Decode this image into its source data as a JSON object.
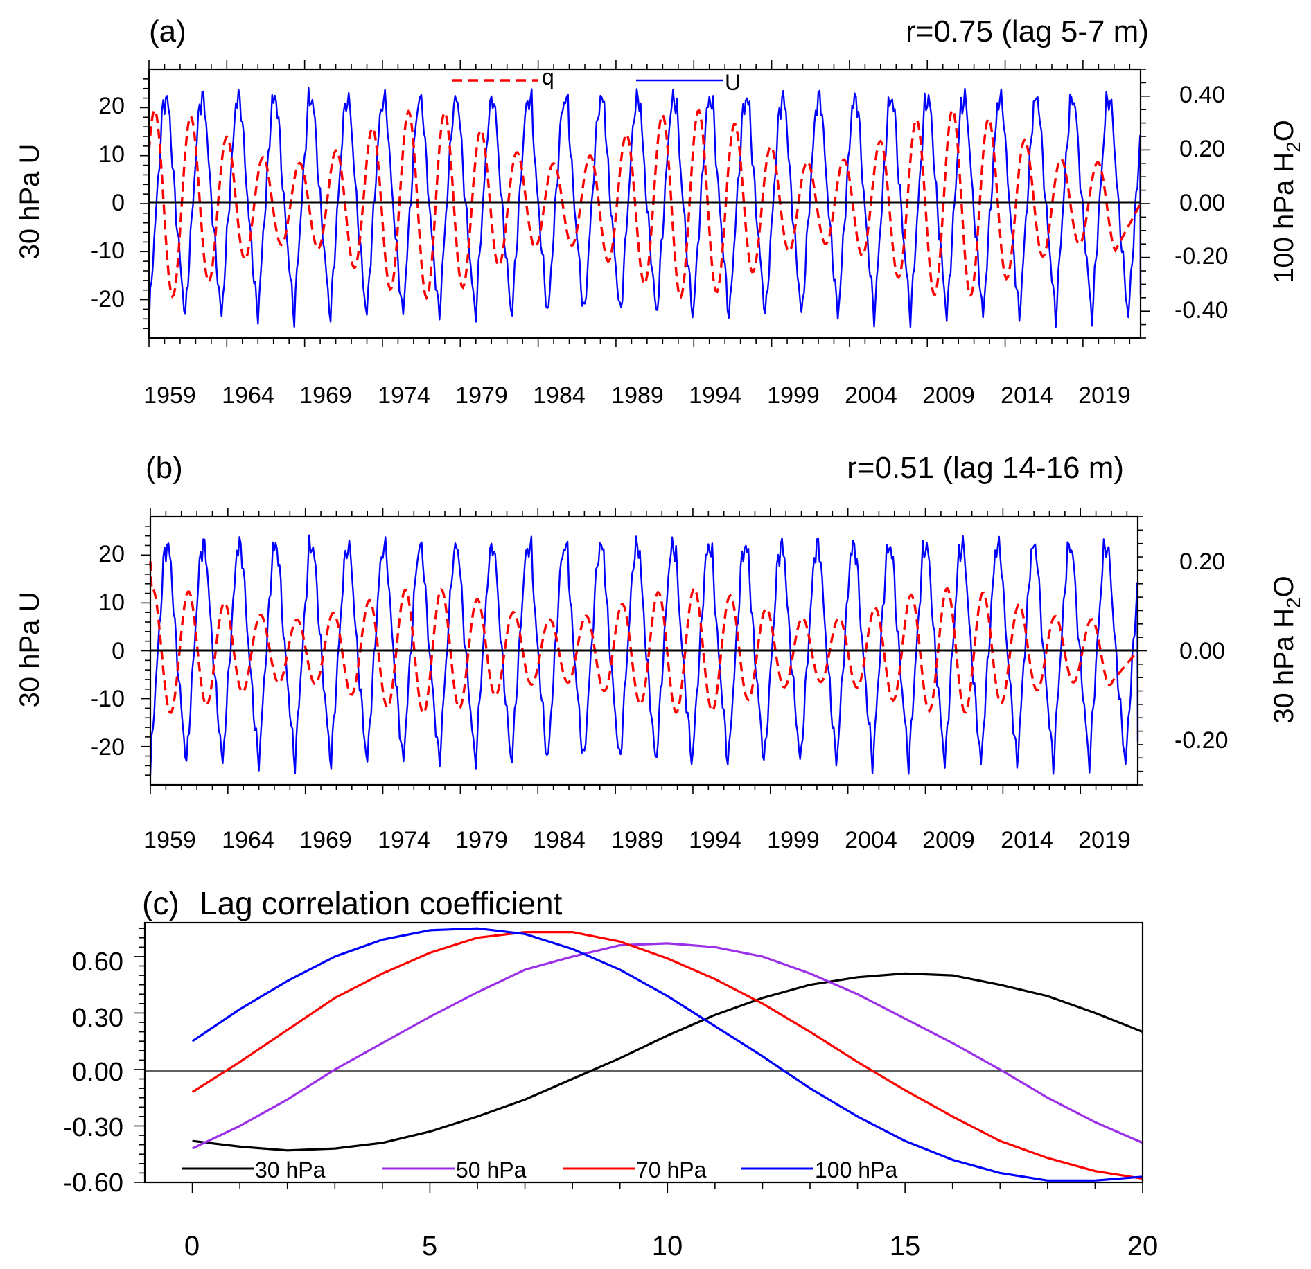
{
  "colors": {
    "q": "#ff0000",
    "U": "#0000ff",
    "zero": "#000000",
    "p30": "#000000",
    "p50": "#9b30e8",
    "p70": "#ff0000",
    "p100": "#0000ff"
  },
  "chart_data": [
    {
      "type": "line",
      "panel_label": "(a)",
      "annotation": "r=0.75 (lag 5-7 m)",
      "ylabel_left": "30 hPa U",
      "ylabel_right_main": "100 hPa H",
      "ylabel_right_sub": "2",
      "ylabel_right_tail": "O",
      "xlim": [
        1959,
        2022.7
      ],
      "ylim_left": [
        -28,
        28
      ],
      "ylim_right": [
        -0.5,
        0.5
      ],
      "x_ticks": [
        "1959",
        "1964",
        "1969",
        "1974",
        "1979",
        "1984",
        "1989",
        "1994",
        "1999",
        "2004",
        "2009",
        "2014",
        "2019"
      ],
      "y_ticks_left": [
        "20",
        "10",
        "0",
        "-10",
        "-20"
      ],
      "y_ticks_right": [
        "0.40",
        "0.20",
        "0.00",
        "-0.20",
        "-0.40"
      ],
      "legend": "top-center",
      "series": [
        {
          "name": "q",
          "axis": "right",
          "style": "dashed",
          "period_years": 2.33,
          "amp_min": 0.15,
          "amp_max": 0.35,
          "phase": 0.6,
          "end_value": 0.0
        },
        {
          "name": "U",
          "axis": "left",
          "style": "solid",
          "period_years": 2.33,
          "max": 22,
          "min": -24,
          "phase": 0.0,
          "start_value": -26,
          "end_value": -19
        }
      ]
    },
    {
      "type": "line",
      "panel_label": "(b)",
      "annotation": "r=0.51 (lag 14-16 m)",
      "ylabel_left": "30 hPa U",
      "ylabel_right_main": "30 hPa H",
      "ylabel_right_sub": "2",
      "ylabel_right_tail": "O",
      "xlim": [
        1959,
        2022.7
      ],
      "ylim_left": [
        -28,
        28
      ],
      "ylim_right": [
        -0.3,
        0.3
      ],
      "x_ticks": [
        "1959",
        "1964",
        "1969",
        "1974",
        "1979",
        "1984",
        "1989",
        "1994",
        "1999",
        "2004",
        "2009",
        "2014",
        "2019"
      ],
      "y_ticks_left": [
        "20",
        "10",
        "0",
        "-10",
        "-20"
      ],
      "y_ticks_right": [
        "0.20",
        "0.00",
        "-0.20"
      ],
      "series": [
        {
          "name": "q",
          "axis": "right",
          "style": "dashed",
          "period_years": 2.33,
          "amp_min": 0.07,
          "amp_max": 0.14,
          "phase": 1.2,
          "start_value": 0.2,
          "end_value": 0.0
        },
        {
          "name": "U",
          "axis": "left",
          "style": "solid",
          "period_years": 2.33,
          "max": 22,
          "min": -24,
          "phase": 0.0,
          "start_value": -26,
          "end_value": -19
        }
      ]
    },
    {
      "type": "line",
      "panel_label": "(c)",
      "title": "Lag correlation coefficient",
      "xlim": [
        -1,
        20
      ],
      "ylim": [
        -0.6,
        0.78
      ],
      "x_ticks": [
        "0",
        "5",
        "10",
        "15",
        "20"
      ],
      "y_ticks": [
        "0.60",
        "0.30",
        "0.00",
        "-0.30",
        "-0.60"
      ],
      "legend": "bottom",
      "x": [
        0,
        1,
        2,
        3,
        4,
        5,
        6,
        7,
        8,
        9,
        10,
        11,
        12,
        13,
        14,
        15,
        16,
        17,
        18,
        19,
        20
      ],
      "series": [
        {
          "name": "30 hPa",
          "key": "p30",
          "values": [
            -0.38,
            -0.41,
            -0.43,
            -0.42,
            -0.39,
            -0.33,
            -0.25,
            -0.16,
            -0.05,
            0.06,
            0.18,
            0.29,
            0.38,
            0.45,
            0.49,
            0.51,
            0.5,
            0.45,
            0.39,
            0.3,
            0.2
          ]
        },
        {
          "name": "50 hPa",
          "key": "p50",
          "values": [
            -0.42,
            -0.3,
            -0.16,
            0.0,
            0.14,
            0.28,
            0.41,
            0.53,
            0.6,
            0.66,
            0.67,
            0.65,
            0.6,
            0.51,
            0.4,
            0.27,
            0.14,
            0.0,
            -0.15,
            -0.28,
            -0.39
          ]
        },
        {
          "name": "70 hPa",
          "key": "p70",
          "values": [
            -0.12,
            0.04,
            0.21,
            0.38,
            0.51,
            0.62,
            0.7,
            0.73,
            0.73,
            0.68,
            0.59,
            0.48,
            0.35,
            0.2,
            0.04,
            -0.11,
            -0.25,
            -0.38,
            -0.47,
            -0.54,
            -0.58
          ]
        },
        {
          "name": "100 hPa",
          "key": "p100",
          "values": [
            0.15,
            0.32,
            0.47,
            0.6,
            0.69,
            0.74,
            0.75,
            0.72,
            0.64,
            0.53,
            0.39,
            0.23,
            0.07,
            -0.1,
            -0.25,
            -0.38,
            -0.48,
            -0.55,
            -0.59,
            -0.59,
            -0.57
          ]
        }
      ]
    }
  ]
}
